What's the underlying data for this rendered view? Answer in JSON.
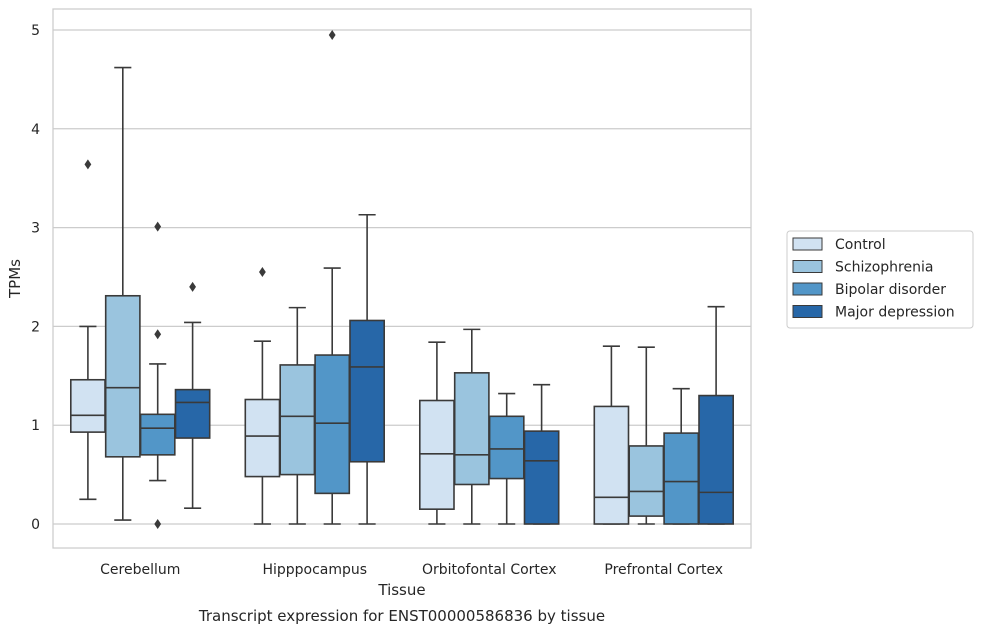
{
  "chart_data": {
    "type": "box",
    "title": "",
    "caption": "Transcript expression for ENST00000586836 by tissue",
    "xlabel": "Tissue",
    "ylabel": "TPMs",
    "ylim": [
      -0.24,
      5.2
    ],
    "yticks": [
      "0",
      "1",
      "2",
      "3",
      "4",
      "5"
    ],
    "categories": [
      "Cerebellum",
      "Hipppocampus",
      "Orbitofontal Cortex",
      "Prefrontal Cortex"
    ],
    "grid": "horizontal",
    "legend_position": "right",
    "series": [
      {
        "name": "Control",
        "color": "#d1e2f2",
        "boxes": [
          {
            "whislo": 0.25,
            "q1": 0.93,
            "med": 1.1,
            "q3": 1.46,
            "whishi": 2.0,
            "fliers": [
              3.64
            ]
          },
          {
            "whislo": 0.0,
            "q1": 0.48,
            "med": 0.89,
            "q3": 1.26,
            "whishi": 1.85,
            "fliers": [
              2.55
            ]
          },
          {
            "whislo": 0.0,
            "q1": 0.15,
            "med": 0.71,
            "q3": 1.25,
            "whishi": 1.84,
            "fliers": []
          },
          {
            "whislo": 0.0,
            "q1": 0.0,
            "med": 0.27,
            "q3": 1.19,
            "whishi": 1.8,
            "fliers": []
          }
        ]
      },
      {
        "name": "Schizophrenia",
        "color": "#9ac4de",
        "boxes": [
          {
            "whislo": 0.04,
            "q1": 0.68,
            "med": 1.38,
            "q3": 2.31,
            "whishi": 4.62,
            "fliers": []
          },
          {
            "whislo": 0.0,
            "q1": 0.5,
            "med": 1.09,
            "q3": 1.61,
            "whishi": 2.19,
            "fliers": []
          },
          {
            "whislo": 0.0,
            "q1": 0.4,
            "med": 0.7,
            "q3": 1.53,
            "whishi": 1.97,
            "fliers": []
          },
          {
            "whislo": 0.0,
            "q1": 0.08,
            "med": 0.33,
            "q3": 0.79,
            "whishi": 1.79,
            "fliers": []
          }
        ]
      },
      {
        "name": "Bipolar disorder",
        "color": "#5296c8",
        "boxes": [
          {
            "whislo": 0.44,
            "q1": 0.7,
            "med": 0.97,
            "q3": 1.11,
            "whishi": 1.62,
            "fliers": [
              3.01,
              1.92,
              0.0
            ]
          },
          {
            "whislo": 0.0,
            "q1": 0.31,
            "med": 1.02,
            "q3": 1.71,
            "whishi": 2.59,
            "fliers": [
              4.95
            ]
          },
          {
            "whislo": 0.0,
            "q1": 0.46,
            "med": 0.76,
            "q3": 1.09,
            "whishi": 1.32,
            "fliers": []
          },
          {
            "whislo": 0.0,
            "q1": 0.0,
            "med": 0.43,
            "q3": 0.92,
            "whishi": 1.37,
            "fliers": []
          }
        ]
      },
      {
        "name": "Major depression",
        "color": "#2767a8",
        "boxes": [
          {
            "whislo": 0.16,
            "q1": 0.87,
            "med": 1.23,
            "q3": 1.36,
            "whishi": 2.04,
            "fliers": [
              2.4
            ]
          },
          {
            "whislo": 0.0,
            "q1": 0.63,
            "med": 1.59,
            "q3": 2.06,
            "whishi": 3.13,
            "fliers": []
          },
          {
            "whislo": 0.0,
            "q1": 0.0,
            "med": 0.64,
            "q3": 0.94,
            "whishi": 1.41,
            "fliers": []
          },
          {
            "whislo": 0.0,
            "q1": 0.0,
            "med": 0.32,
            "q3": 1.3,
            "whishi": 2.2,
            "fliers": []
          }
        ]
      }
    ]
  }
}
